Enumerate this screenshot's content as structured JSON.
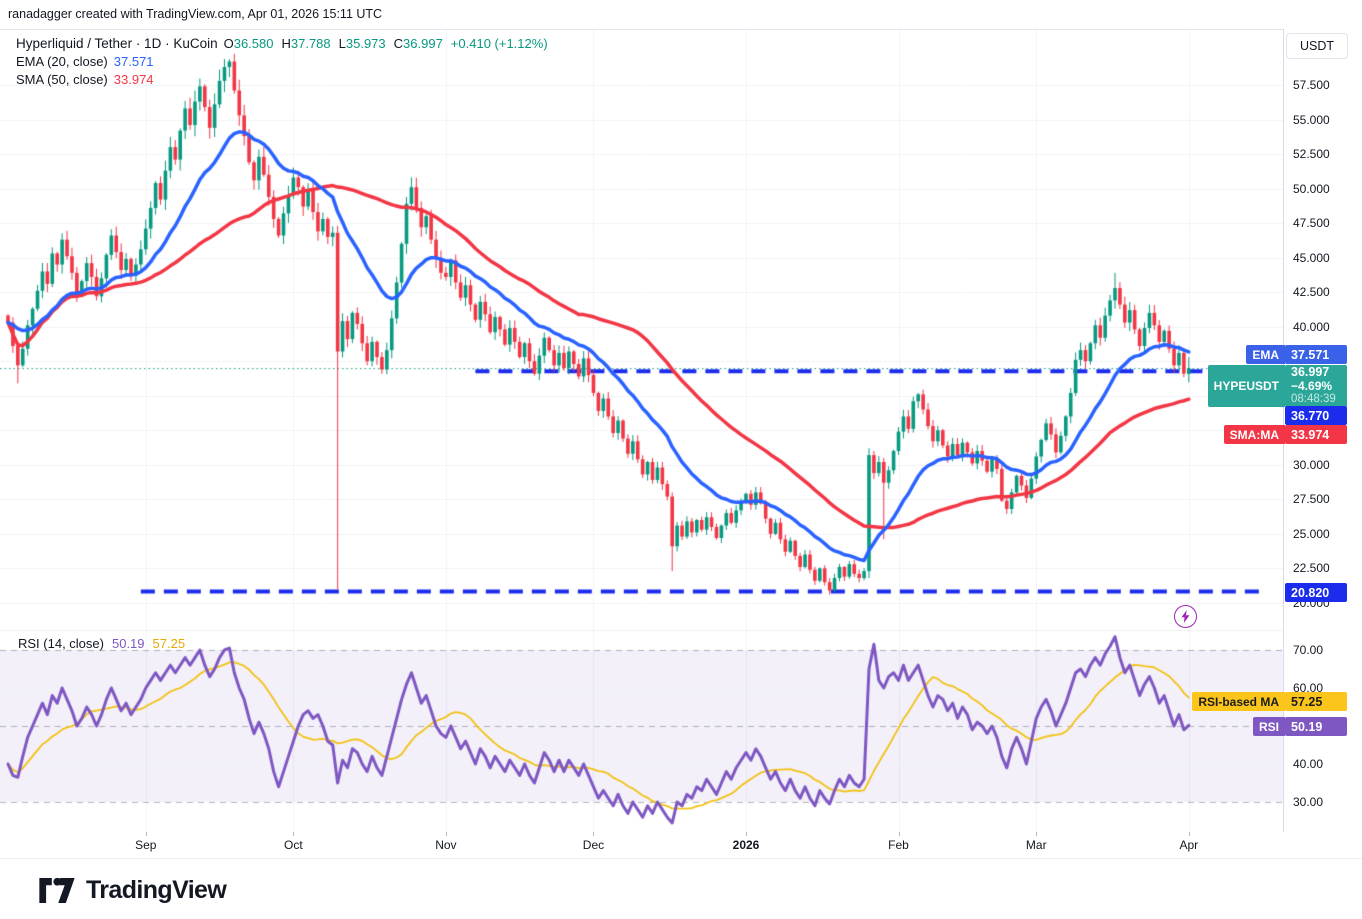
{
  "header": {
    "attribution": "ranadagger created with TradingView.com, Apr 01, 2026 15:11 UTC"
  },
  "legend": {
    "title": "Hyperliquid / Tether · 1D · KuCoin",
    "o_label": "O",
    "o": "36.580",
    "h_label": "H",
    "h": "37.788",
    "l_label": "L",
    "l": "35.973",
    "c_label": "C",
    "c": "36.997",
    "change": "+0.410 (+1.12%)",
    "ema_label": "EMA (20, close)",
    "ema_value": "37.571",
    "sma_label": "SMA (50, close)",
    "sma_value": "33.974"
  },
  "rsi_legend": {
    "label": "RSI (14, close)",
    "rsi_value": "50.19",
    "ma_value": "57.25"
  },
  "price_axis": {
    "currency_button": "USDT",
    "badges": {
      "ema_tag": "EMA",
      "ema": "37.571",
      "symbol_tag": "HYPEUSDT",
      "last_price": "36.997",
      "change_pct": "−4.69%",
      "countdown": "08:48:39",
      "level_mid": "36.770",
      "sma_tag": "SMA:MA",
      "sma": "33.974",
      "level_support": "20.820"
    }
  },
  "rsi_axis": {
    "ma_tag": "RSI-based MA",
    "ma": "57.25",
    "rsi_tag": "RSI",
    "rsi": "50.19"
  },
  "footer": {
    "brand": "TradingView"
  },
  "colors": {
    "up": "#089981",
    "down": "#f23645",
    "ema_line": "#2962ff",
    "sma_line": "#f23645",
    "rsi_line": "#7e57c2",
    "rsi_ma_line": "#f2c114",
    "level_blue": "#1c2cec",
    "last_price_line": "#089981",
    "hype_badge": "#2ba79a",
    "ema_badge": "#3962e8",
    "mid_badge": "#1c2cec",
    "sma_badge": "#f23645",
    "rsima_badge": "#fcc51b",
    "rsi_badge": "#7e57c2"
  },
  "chart_data": {
    "type": "candlestick",
    "title": "Hyperliquid / Tether · 1D · KuCoin",
    "symbol": "HYPEUSDT",
    "interval": "1D",
    "price_ylim": [
      18.9,
      62.0
    ],
    "rsi_ylim": [
      22,
      78
    ],
    "indicators": {
      "ema_period": 20,
      "sma_period": 50,
      "rsi_period": 14,
      "rsi_ma_period": 14
    },
    "last_candle": {
      "open": 36.58,
      "high": 37.788,
      "low": 35.973,
      "close": 36.997,
      "change": "+0.410 (+1.12%)"
    },
    "closes": [
      40.3,
      38.6,
      37.2,
      38.4,
      40.1,
      41.3,
      42.6,
      44.0,
      43.1,
      45.3,
      44.5,
      46.3,
      45.1,
      43.9,
      42.4,
      43.3,
      44.6,
      43.6,
      42.2,
      43.5,
      45.2,
      46.6,
      45.4,
      44.1,
      44.9,
      43.7,
      44.5,
      45.6,
      47.1,
      48.6,
      50.4,
      49.2,
      51.3,
      53.0,
      52.1,
      54.2,
      55.8,
      54.6,
      56.3,
      57.4,
      55.9,
      54.4,
      56.1,
      57.8,
      58.8,
      59.2,
      57.1,
      55.3,
      53.8,
      51.9,
      50.6,
      52.3,
      51.0,
      49.4,
      47.8,
      46.6,
      48.2,
      49.5,
      50.8,
      50.1,
      48.7,
      49.9,
      48.3,
      46.9,
      47.8,
      46.5,
      46.8,
      38.2,
      40.4,
      39.1,
      41.0,
      40.2,
      38.8,
      37.5,
      38.9,
      37.8,
      36.9,
      38.3,
      40.6,
      43.2,
      46.0,
      48.9,
      50.1,
      48.6,
      47.2,
      48.0,
      46.3,
      44.9,
      43.9,
      43.6,
      44.8,
      43.2,
      42.1,
      43.0,
      41.6,
      40.5,
      41.8,
      40.9,
      39.6,
      40.7,
      39.8,
      38.7,
      39.9,
      38.9,
      37.8,
      38.8,
      37.5,
      36.6,
      37.9,
      39.2,
      38.3,
      37.2,
      38.1,
      37.0,
      38.2,
      37.3,
      36.4,
      37.7,
      36.5,
      35.2,
      33.9,
      34.8,
      33.5,
      32.3,
      33.2,
      31.9,
      30.8,
      31.7,
      30.4,
      29.3,
      30.2,
      28.9,
      29.8,
      28.6,
      27.7,
      24.1,
      25.6,
      24.8,
      25.9,
      25.1,
      26.0,
      25.3,
      26.2,
      25.5,
      24.7,
      25.6,
      26.5,
      25.8,
      26.7,
      27.3,
      27.9,
      27.1,
      28.0,
      27.2,
      26.1,
      25.0,
      25.8,
      24.6,
      23.7,
      24.5,
      23.4,
      22.6,
      23.5,
      22.4,
      21.6,
      22.5,
      21.5,
      20.9,
      21.8,
      22.6,
      21.9,
      22.8,
      22.1,
      21.8,
      22.3,
      30.7,
      29.4,
      30.2,
      28.7,
      29.6,
      31.0,
      32.4,
      33.5,
      32.6,
      34.6,
      35.1,
      34.0,
      32.8,
      31.7,
      32.5,
      31.4,
      30.6,
      31.5,
      30.7,
      31.6,
      30.9,
      30.1,
      31.0,
      30.3,
      29.5,
      30.4,
      29.7,
      27.4,
      26.8,
      28.0,
      29.2,
      28.5,
      27.6,
      29.0,
      30.6,
      31.8,
      33.0,
      32.2,
      30.9,
      32.1,
      33.5,
      35.2,
      37.6,
      38.3,
      37.5,
      38.8,
      40.1,
      39.2,
      40.8,
      41.9,
      42.8,
      41.6,
      40.3,
      41.2,
      39.8,
      38.6,
      39.9,
      41.0,
      40.1,
      38.9,
      39.7,
      38.4,
      37.2,
      38.1,
      36.6,
      36.997
    ],
    "special_candles": {
      "2": [
        38.6,
        38.9,
        35.9,
        37.2
      ],
      "67": [
        46.8,
        47.3,
        21.0,
        38.2
      ],
      "135": [
        27.7,
        28.0,
        22.3,
        24.1
      ],
      "175": [
        22.3,
        31.2,
        21.8,
        30.7
      ],
      "178": [
        30.2,
        30.5,
        24.6,
        28.7
      ],
      "225": [
        41.9,
        43.9,
        41.3,
        42.8
      ],
      "240": [
        36.58,
        37.788,
        35.973,
        36.997
      ]
    },
    "rsi": [
      40,
      37,
      36.5,
      42,
      47,
      50,
      53,
      56,
      53,
      58,
      56,
      60,
      57,
      54,
      50,
      52,
      55,
      53,
      50,
      53,
      57,
      60,
      57,
      54,
      56,
      53,
      55,
      57,
      60,
      62,
      64,
      62,
      64,
      66,
      64,
      66,
      68,
      66,
      68,
      70,
      66,
      63,
      65,
      68,
      70,
      70.5,
      64,
      60,
      57,
      52,
      48,
      51,
      48,
      44,
      38,
      34,
      38,
      42,
      46,
      50,
      53,
      54,
      52,
      53,
      50,
      46,
      45,
      35,
      41,
      39,
      44,
      43,
      40,
      38,
      42,
      39,
      37,
      42,
      47,
      52,
      57,
      61,
      64,
      60,
      56,
      58,
      54,
      50,
      48,
      47,
      50,
      47,
      44,
      46,
      43,
      40,
      44,
      42,
      39,
      42,
      40,
      38,
      41,
      39,
      37,
      40,
      37,
      35,
      39,
      43,
      41,
      38,
      41,
      38,
      41,
      39,
      37,
      40,
      37,
      34,
      31,
      33,
      31,
      29,
      32,
      29,
      27,
      30,
      28,
      26,
      29,
      27,
      30,
      28,
      26,
      24.5,
      30,
      29,
      32,
      31,
      34,
      33,
      36,
      34,
      32,
      35,
      38,
      36,
      39,
      41,
      43,
      41,
      44,
      42,
      39,
      36,
      38,
      35,
      33,
      36,
      33,
      31,
      34,
      31,
      29,
      33,
      31,
      29.5,
      33,
      36,
      34,
      37,
      35,
      34,
      36,
      65,
      71.5,
      62,
      60,
      63,
      64,
      62,
      66,
      62,
      64,
      66,
      62,
      58,
      55,
      58,
      57,
      54,
      56,
      52,
      55,
      53,
      49,
      51,
      50,
      48,
      50,
      47,
      42,
      39,
      44,
      47,
      44,
      40,
      46,
      52,
      55,
      57,
      54,
      50,
      53,
      56,
      60,
      64,
      65,
      63,
      66,
      68,
      66,
      69,
      71,
      73.5,
      68,
      64,
      66,
      62,
      58,
      61,
      63,
      60,
      56,
      58,
      54,
      50,
      53,
      49,
      50.19
    ],
    "levels": [
      {
        "value": 36.77,
        "from_index": 95,
        "to_index": 259,
        "label": "36.770"
      },
      {
        "value": 20.82,
        "from_index": 27,
        "to_index": 256,
        "label": "20.820"
      }
    ],
    "last_price_line": 36.997,
    "month_labels": [
      {
        "label": "Sep",
        "index": 28,
        "bold": false
      },
      {
        "label": "Oct",
        "index": 58,
        "bold": false
      },
      {
        "label": "Nov",
        "index": 89,
        "bold": false
      },
      {
        "label": "Dec",
        "index": 119,
        "bold": false
      },
      {
        "label": "2026",
        "index": 150,
        "bold": true
      },
      {
        "label": "Feb",
        "index": 181,
        "bold": false
      },
      {
        "label": "Mar",
        "index": 209,
        "bold": false
      },
      {
        "label": "Apr",
        "index": 240,
        "bold": false
      }
    ],
    "price_ticks": [
      57.5,
      55,
      52.5,
      50,
      47.5,
      45,
      42.5,
      40,
      30,
      27.5,
      25,
      22.5,
      20
    ],
    "price_grid_step": 2.5,
    "rsi_ticks": [
      70,
      60,
      40,
      30
    ],
    "rsi_band": [
      30,
      70
    ],
    "rsi_mid": 50
  }
}
